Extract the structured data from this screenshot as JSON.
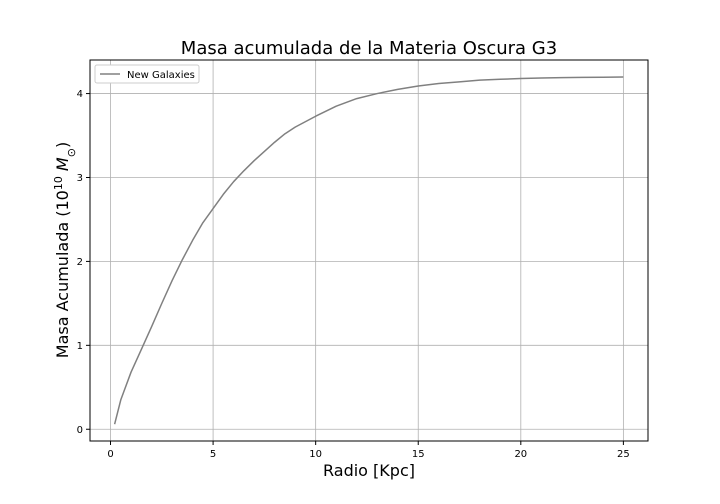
{
  "chart_data": {
    "type": "line",
    "title": "Masa acumulada de la Materia Oscura G3",
    "xlabel": "Radio [Kpc]",
    "ylabel": "Masa Acumulada (10^10 M_⊙)",
    "xlim": [
      -1.0,
      26.2
    ],
    "ylim": [
      -0.14,
      4.4
    ],
    "xticks": [
      0,
      5,
      10,
      15,
      20,
      25
    ],
    "yticks": [
      0,
      1,
      2,
      3,
      4
    ],
    "grid": true,
    "legend_position": "top-left",
    "series": [
      {
        "name": "New Galaxies",
        "color": "#808080",
        "x": [
          0.2,
          0.5,
          1.0,
          1.5,
          2.0,
          2.5,
          3.0,
          3.5,
          4.0,
          4.5,
          5.0,
          5.5,
          6.0,
          6.5,
          7.0,
          7.5,
          8.0,
          8.5,
          9.0,
          10.0,
          11.0,
          12.0,
          13.0,
          14.0,
          15.0,
          16.0,
          17.0,
          18.0,
          19.0,
          20.0,
          21.0,
          22.0,
          23.0,
          24.0,
          25.0
        ],
        "y": [
          0.06,
          0.35,
          0.68,
          0.95,
          1.22,
          1.5,
          1.77,
          2.02,
          2.25,
          2.46,
          2.63,
          2.8,
          2.95,
          3.08,
          3.2,
          3.31,
          3.42,
          3.52,
          3.6,
          3.73,
          3.85,
          3.94,
          4.0,
          4.05,
          4.09,
          4.12,
          4.14,
          4.16,
          4.17,
          4.18,
          4.185,
          4.19,
          4.193,
          4.195,
          4.197
        ]
      }
    ]
  }
}
